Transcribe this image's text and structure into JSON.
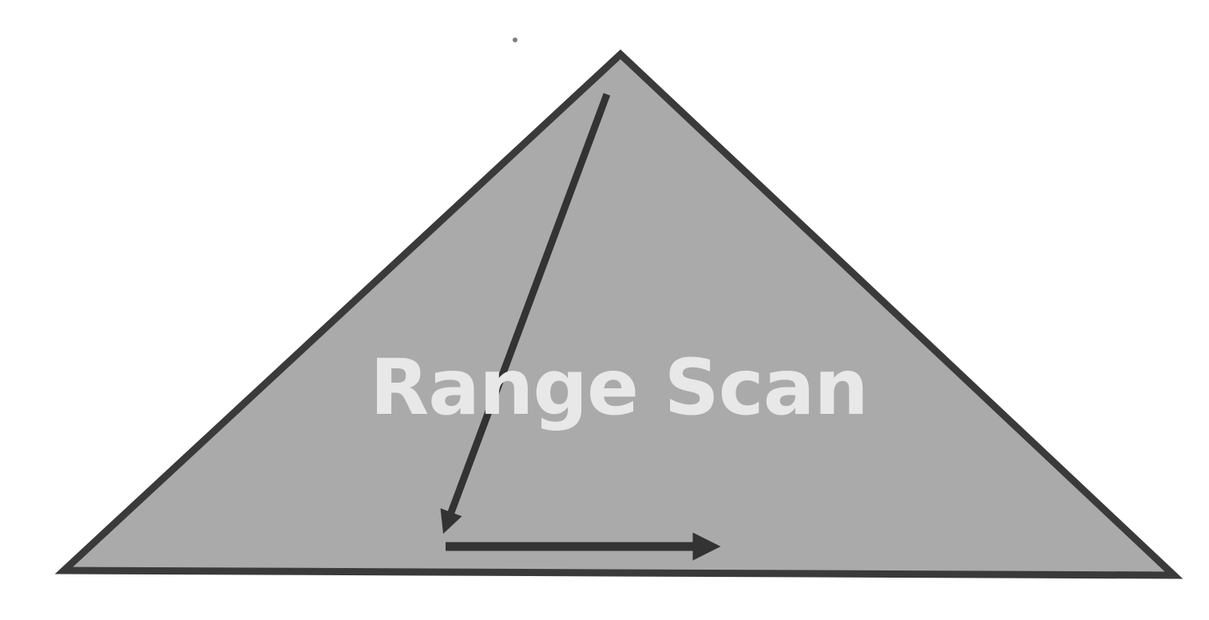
{
  "diagram": {
    "label": "Range Scan",
    "colors": {
      "background": "#ffffff",
      "triangle_fill": "#aaaaaa",
      "triangle_stroke": "#3a3a3a",
      "arrow": "#333333",
      "label": "#e8e8e8"
    }
  }
}
